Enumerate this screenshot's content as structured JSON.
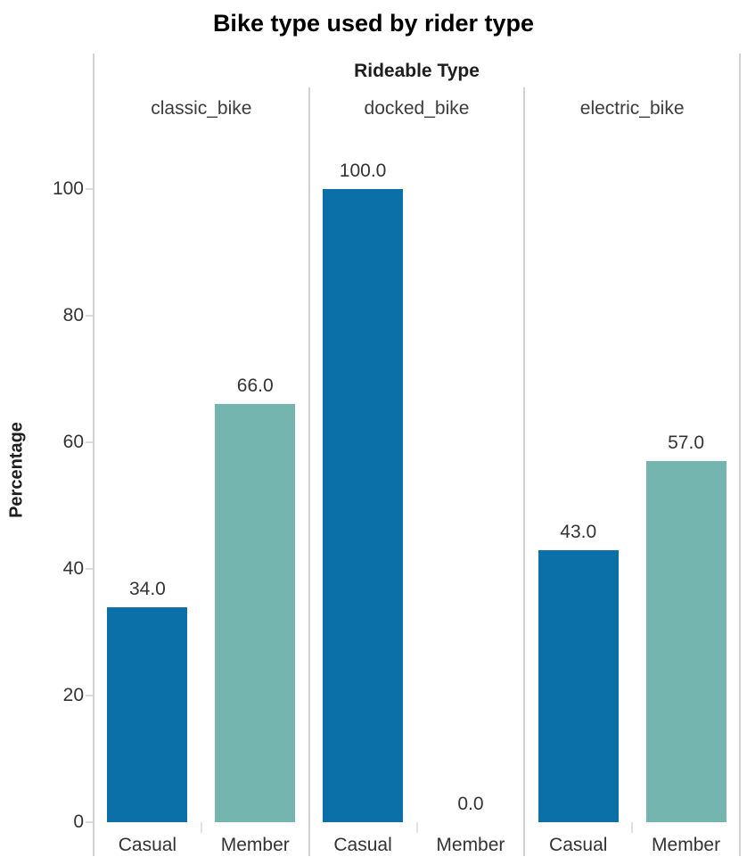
{
  "chart_data": {
    "type": "bar",
    "title": "Bike type used by rider type",
    "facet_title": "Rideable Type",
    "ylabel": "Percentage",
    "categories": [
      "Casual",
      "Member"
    ],
    "facets": [
      {
        "name": "classic_bike",
        "values": [
          34.0,
          66.0
        ],
        "labels": [
          "34.0",
          "66.0"
        ]
      },
      {
        "name": "docked_bike",
        "values": [
          100.0,
          0.0
        ],
        "labels": [
          "100.0",
          "0.0"
        ]
      },
      {
        "name": "electric_bike",
        "values": [
          43.0,
          57.0
        ],
        "labels": [
          "43.0",
          "57.0"
        ]
      }
    ],
    "series_colors": {
      "Casual": "#0b70a8",
      "Member": "#74b5b0"
    },
    "yticks": [
      0,
      20,
      40,
      60,
      80,
      100
    ],
    "ylim": [
      0,
      100
    ],
    "grid": false,
    "legend": "none"
  }
}
